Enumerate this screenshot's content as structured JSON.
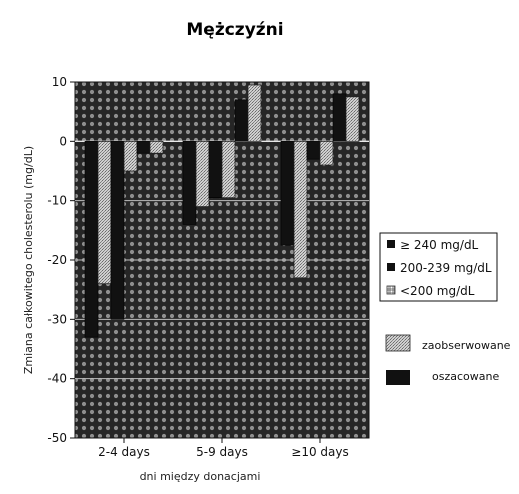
{
  "chart_data": {
    "type": "bar",
    "title": "Mężczyźni",
    "xlabel": "dni między donacjami",
    "ylabel": "Zmiana całkowitego cholesterolu (mg/dL)",
    "ylim": [
      -50,
      10
    ],
    "yticks": [
      10,
      0,
      -10,
      -20,
      -30,
      -40,
      -50
    ],
    "grid": true,
    "categories": [
      "2-4 days",
      "5-9 days",
      "≥10 days"
    ],
    "series": [
      {
        "name": "≥ 240 mg/dL",
        "observed": [
          -24,
          -11,
          -23
        ],
        "estimated": [
          -33,
          -14,
          -17.5
        ]
      },
      {
        "name": "200-239 mg/dL",
        "observed": [
          -5,
          -9.5,
          -4
        ],
        "estimated": [
          -30,
          -9.5,
          -3
        ]
      },
      {
        "name": "<200 mg/dL",
        "observed": [
          -2,
          9.5,
          7.5
        ],
        "estimated": [
          -2,
          7,
          8
        ]
      }
    ],
    "legend_series_placement": "right",
    "legend_type": [
      {
        "label": "zaobserwowane",
        "style": "stippled"
      },
      {
        "label": "oszacowane",
        "style": "solid"
      }
    ],
    "legend_type_placement": "right",
    "colors": {
      "estimated": "#111111",
      "observed": "#b8b8b8",
      "plot_background": "#2a2a2a",
      "dots": "#8f8f8f"
    }
  }
}
